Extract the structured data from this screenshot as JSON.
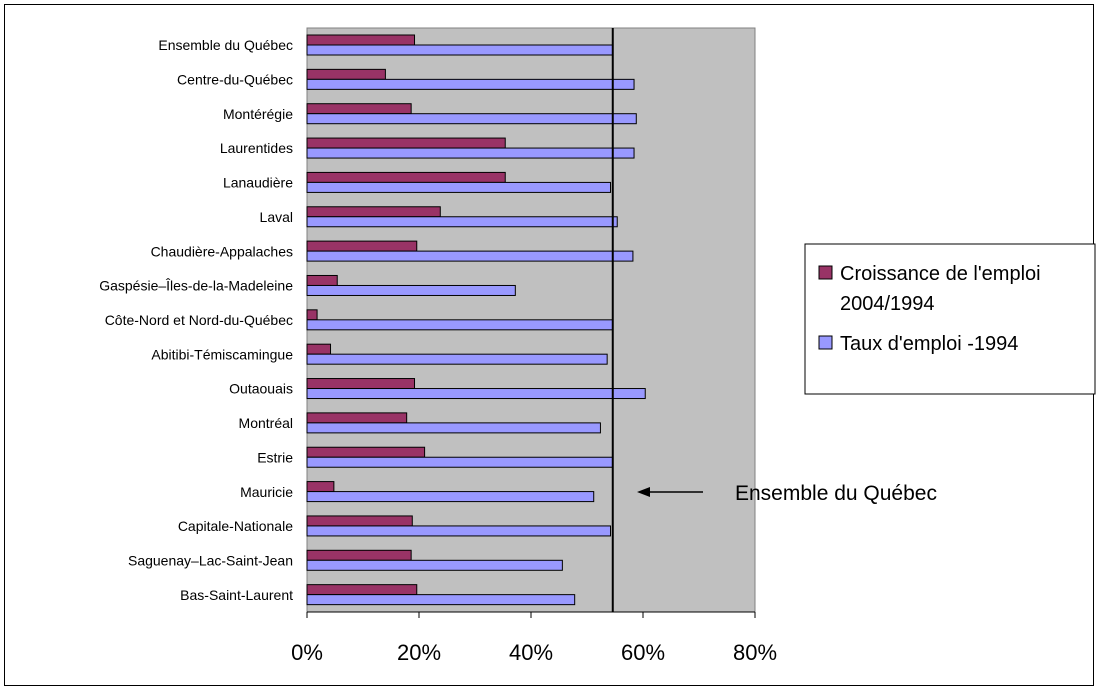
{
  "chart_data": {
    "type": "bar",
    "orientation": "horizontal",
    "categories": [
      "Ensemble du Québec",
      "Centre-du-Québec",
      "Montérégie",
      "Laurentides",
      "Lanaudière",
      "Laval",
      "Chaudière-Appalaches",
      "Gaspésie–Îles-de-la-Madeleine",
      "Côte-Nord et Nord-du-Québec",
      "Abitibi-Témiscamingue",
      "Outaouais",
      "Montréal",
      "Estrie",
      "Mauricie",
      "Capitale-Nationale",
      "Saguenay–Lac-Saint-Jean",
      "Bas-Saint-Laurent"
    ],
    "series": [
      {
        "name": "Croissance de l'emploi 2004/1994",
        "color": "#993366",
        "values": [
          19.2,
          14.0,
          18.6,
          35.4,
          35.4,
          23.8,
          19.6,
          5.4,
          1.8,
          4.2,
          19.2,
          17.8,
          21.0,
          4.8,
          18.8,
          18.6,
          19.6
        ]
      },
      {
        "name": "Taux d'emploi -1994",
        "color": "#9999ff",
        "values": [
          54.6,
          58.4,
          58.8,
          58.4,
          54.2,
          55.4,
          58.2,
          37.2,
          54.6,
          53.6,
          60.4,
          52.4,
          54.6,
          51.2,
          54.2,
          45.6,
          47.8
        ]
      }
    ],
    "legend_lines": [
      [
        "Croissance de l'emploi",
        "2004/1994"
      ],
      [
        "Taux d'emploi -1994"
      ]
    ],
    "xlim": [
      0,
      80
    ],
    "xticks": [
      "0%",
      "20%",
      "40%",
      "60%",
      "80%"
    ],
    "reference_line": {
      "value": 54.6,
      "label": "Ensemble du Québec"
    },
    "legend_position": "right",
    "plot_background": "#c0c0c0",
    "grid": false
  }
}
